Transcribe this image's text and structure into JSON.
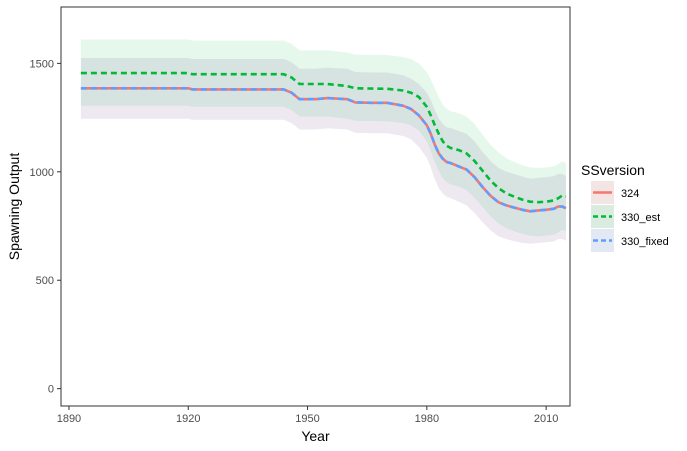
{
  "chart_data": {
    "type": "line",
    "xlabel": "Year",
    "ylabel": "Spawning Output",
    "xlim": [
      1888,
      2016
    ],
    "ylim": [
      -80,
      1760
    ],
    "x_ticks": [
      1890,
      1920,
      1950,
      1980,
      2010
    ],
    "y_ticks": [
      0,
      500,
      1000,
      1500
    ],
    "grid": false,
    "legend": {
      "title": "SSversion",
      "placement": "right"
    },
    "series": [
      {
        "name": "324",
        "color": "#F8766D",
        "linestyle": "solid",
        "band_color": "#F8766D",
        "x": [
          1893,
          1920,
          1921,
          1944,
          1946,
          1948,
          1952,
          1955,
          1960,
          1962,
          1966,
          1970,
          1974,
          1976,
          1978,
          1980,
          1981,
          1982,
          1983,
          1984,
          1985,
          1986,
          1988,
          1990,
          1992,
          1994,
          1996,
          1998,
          2000,
          2002,
          2004,
          2006,
          2008,
          2010,
          2012,
          2013,
          2014,
          2015
        ],
        "y": [
          1385,
          1385,
          1380,
          1380,
          1365,
          1335,
          1335,
          1340,
          1335,
          1320,
          1318,
          1318,
          1305,
          1290,
          1260,
          1215,
          1175,
          1125,
          1085,
          1060,
          1045,
          1040,
          1025,
          1010,
          975,
          930,
          890,
          860,
          845,
          835,
          825,
          818,
          822,
          825,
          830,
          840,
          840,
          832
        ],
        "lower": [
          1245,
          1245,
          1240,
          1240,
          1225,
          1195,
          1195,
          1200,
          1195,
          1180,
          1178,
          1178,
          1165,
          1150,
          1115,
          1065,
          1020,
          965,
          925,
          900,
          885,
          878,
          862,
          845,
          810,
          768,
          730,
          702,
          690,
          680,
          672,
          668,
          672,
          675,
          680,
          690,
          690,
          682
        ],
        "upper": [
          1525,
          1525,
          1520,
          1520,
          1505,
          1475,
          1475,
          1480,
          1475,
          1460,
          1458,
          1458,
          1445,
          1430,
          1405,
          1365,
          1330,
          1285,
          1245,
          1220,
          1205,
          1202,
          1188,
          1175,
          1140,
          1092,
          1050,
          1018,
          1000,
          990,
          978,
          968,
          972,
          975,
          980,
          990,
          990,
          982
        ]
      },
      {
        "name": "330_est",
        "color": "#00BA38",
        "linestyle": "dashed",
        "band_color": "#00BA38",
        "x": [
          1893,
          1920,
          1921,
          1944,
          1946,
          1948,
          1955,
          1960,
          1962,
          1970,
          1974,
          1976,
          1978,
          1980,
          1981,
          1982,
          1983,
          1984,
          1985,
          1986,
          1988,
          1990,
          1992,
          1994,
          1996,
          1998,
          2000,
          2002,
          2004,
          2006,
          2008,
          2010,
          2012,
          2013,
          2014,
          2015
        ],
        "y": [
          1455,
          1455,
          1450,
          1450,
          1435,
          1405,
          1405,
          1395,
          1385,
          1383,
          1375,
          1365,
          1345,
          1300,
          1260,
          1215,
          1175,
          1140,
          1120,
          1110,
          1100,
          1085,
          1050,
          1005,
          960,
          925,
          900,
          885,
          872,
          862,
          860,
          862,
          868,
          878,
          890,
          885
        ],
        "lower": [
          1305,
          1305,
          1300,
          1300,
          1285,
          1255,
          1255,
          1245,
          1235,
          1233,
          1225,
          1215,
          1190,
          1140,
          1095,
          1045,
          1005,
          970,
          952,
          942,
          932,
          915,
          880,
          838,
          795,
          762,
          740,
          725,
          714,
          705,
          702,
          705,
          710,
          720,
          732,
          728
        ],
        "upper": [
          1610,
          1610,
          1605,
          1605,
          1590,
          1560,
          1560,
          1550,
          1540,
          1538,
          1530,
          1520,
          1500,
          1460,
          1425,
          1385,
          1345,
          1310,
          1290,
          1280,
          1270,
          1255,
          1220,
          1172,
          1125,
          1090,
          1062,
          1045,
          1030,
          1020,
          1018,
          1020,
          1025,
          1035,
          1048,
          1042
        ]
      },
      {
        "name": "330_fixed",
        "color": "#619CFF",
        "linestyle": "dashed",
        "band_color": "#619CFF",
        "x": [
          1893,
          1920,
          1921,
          1944,
          1946,
          1948,
          1952,
          1955,
          1960,
          1962,
          1966,
          1970,
          1974,
          1976,
          1978,
          1980,
          1981,
          1982,
          1983,
          1984,
          1985,
          1986,
          1988,
          1990,
          1992,
          1994,
          1996,
          1998,
          2000,
          2002,
          2004,
          2006,
          2008,
          2010,
          2012,
          2013,
          2014,
          2015
        ],
        "y": [
          1385,
          1385,
          1380,
          1380,
          1365,
          1335,
          1335,
          1340,
          1335,
          1320,
          1318,
          1318,
          1305,
          1290,
          1260,
          1215,
          1175,
          1125,
          1085,
          1060,
          1045,
          1040,
          1025,
          1010,
          975,
          930,
          890,
          860,
          845,
          835,
          825,
          818,
          822,
          825,
          830,
          840,
          840,
          832
        ],
        "lower": [
          1245,
          1245,
          1240,
          1240,
          1225,
          1195,
          1195,
          1200,
          1195,
          1180,
          1178,
          1178,
          1165,
          1150,
          1115,
          1065,
          1020,
          965,
          925,
          900,
          885,
          878,
          862,
          845,
          810,
          768,
          730,
          702,
          690,
          680,
          672,
          668,
          672,
          675,
          680,
          690,
          690,
          682
        ],
        "upper": [
          1525,
          1525,
          1520,
          1520,
          1505,
          1475,
          1475,
          1480,
          1475,
          1460,
          1458,
          1458,
          1445,
          1430,
          1405,
          1365,
          1330,
          1285,
          1245,
          1220,
          1205,
          1202,
          1188,
          1175,
          1140,
          1092,
          1050,
          1018,
          1000,
          990,
          978,
          968,
          972,
          975,
          980,
          990,
          990,
          982
        ]
      }
    ]
  }
}
